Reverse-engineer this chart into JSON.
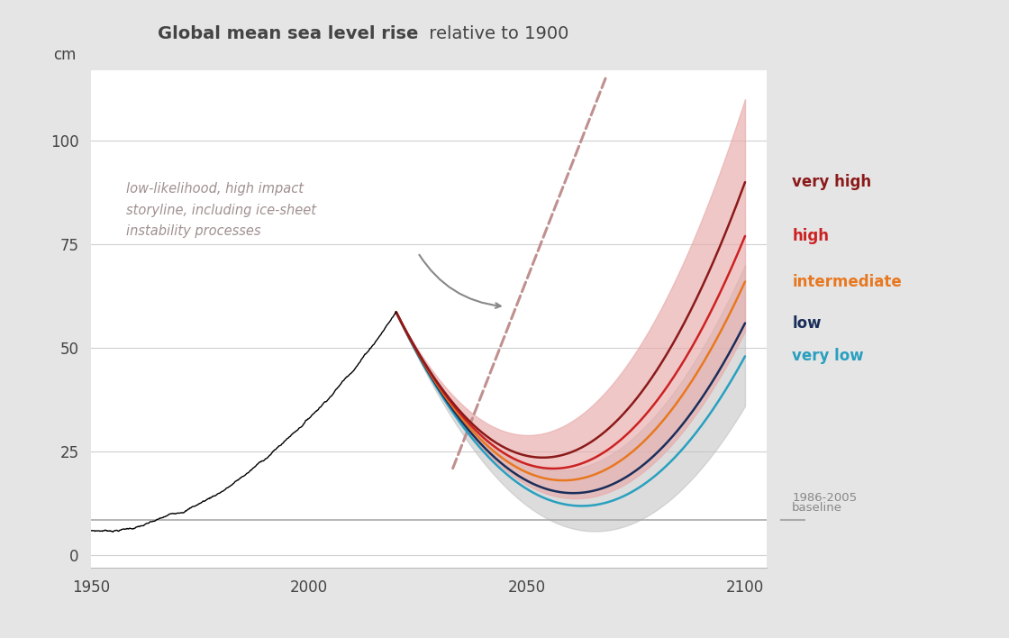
{
  "title_bold": "Global mean sea level rise",
  "title_normal": " relative to 1900",
  "background_color": "#e5e5e5",
  "plot_bg_color": "#ffffff",
  "ylabel": "cm",
  "xlim": [
    1950,
    2105
  ],
  "ylim": [
    -3,
    117
  ],
  "xticks": [
    1950,
    2000,
    2050,
    2100
  ],
  "yticks": [
    0,
    25,
    50,
    75,
    100
  ],
  "baseline_y": 8.5,
  "scenarios": {
    "very_high": {
      "color": "#8b1a1a",
      "label": "very high",
      "central_2100": 90,
      "lower_2100": 62,
      "upper_2100": 110,
      "central_2050": 24,
      "lower_2050": 19,
      "upper_2050": 29
    },
    "high": {
      "color": "#cc2222",
      "label": "high",
      "central_2100": 77,
      "lower_2100": 54,
      "upper_2100": 98,
      "central_2050": 22,
      "lower_2050": 17,
      "upper_2050": 27
    },
    "intermediate": {
      "color": "#e87820",
      "label": "intermediate",
      "central_2100": 66,
      "lower_2100": 48,
      "upper_2100": 82,
      "central_2050": 20,
      "lower_2050": 16,
      "upper_2050": 25
    },
    "low": {
      "color": "#1a2e5a",
      "label": "low",
      "central_2100": 56,
      "lower_2100": 41,
      "upper_2100": 70,
      "central_2050": 18,
      "lower_2050": 14,
      "upper_2050": 22
    },
    "very_low": {
      "color": "#28a0c0",
      "label": "very low",
      "central_2100": 48,
      "lower_2100": 36,
      "upper_2100": 60,
      "central_2050": 16,
      "lower_2050": 12,
      "upper_2050": 20
    }
  },
  "annotation_text": "low-likelihood, high impact\nstoryline, including ice-sheet\ninstability processes",
  "annotation_color": "#a09090",
  "dashed_line_color": "#c09090",
  "arrow_color": "#888888",
  "title_color": "#444444",
  "tick_color": "#444444",
  "grid_color": "#d0d0d0",
  "baseline_color": "#aaaaaa",
  "label_colors": {
    "very_high": "#8b1a1a",
    "high": "#cc2222",
    "intermediate": "#e87820",
    "low": "#1a2e5a",
    "very_low": "#28a0c0"
  }
}
